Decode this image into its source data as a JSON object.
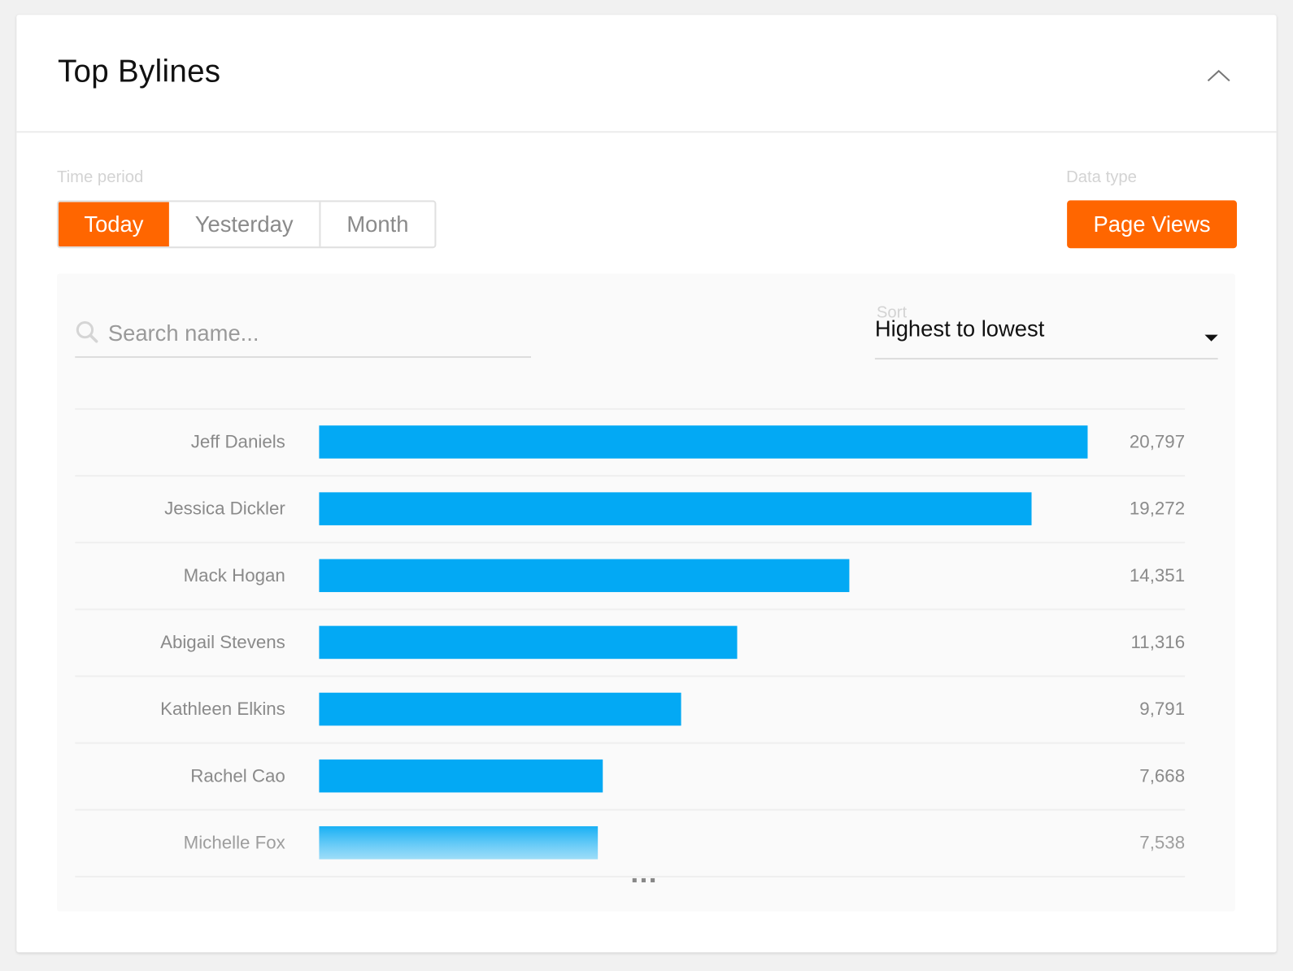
{
  "header": {
    "title": "Top Bylines",
    "collapse_icon": "chevron-up-icon"
  },
  "filters": {
    "time_period_label": "Time period",
    "time_period_options": [
      "Today",
      "Yesterday",
      "Month"
    ],
    "time_period_selected": "Today",
    "data_type_label": "Data type",
    "data_type_value": "Page Views"
  },
  "search": {
    "placeholder": "Search name...",
    "value": "",
    "icon": "search-icon"
  },
  "sort": {
    "label": "Sort",
    "value": "Highest to lowest"
  },
  "colors": {
    "accent": "#ff6600",
    "bar": "#03a9f4"
  },
  "chart_data": {
    "type": "bar",
    "orientation": "horizontal",
    "categories": [
      "Jeff Daniels",
      "Jessica Dickler",
      "Mack Hogan",
      "Abigail Stevens",
      "Kathleen Elkins",
      "Rachel Cao",
      "Michelle Fox"
    ],
    "values": [
      20797,
      19272,
      14351,
      11316,
      9791,
      7668,
      7538
    ],
    "labels": [
      "20,797",
      "19,272",
      "14,351",
      "11,316",
      "9,791",
      "7,668",
      "7,538"
    ]
  },
  "more_indicator": "..."
}
